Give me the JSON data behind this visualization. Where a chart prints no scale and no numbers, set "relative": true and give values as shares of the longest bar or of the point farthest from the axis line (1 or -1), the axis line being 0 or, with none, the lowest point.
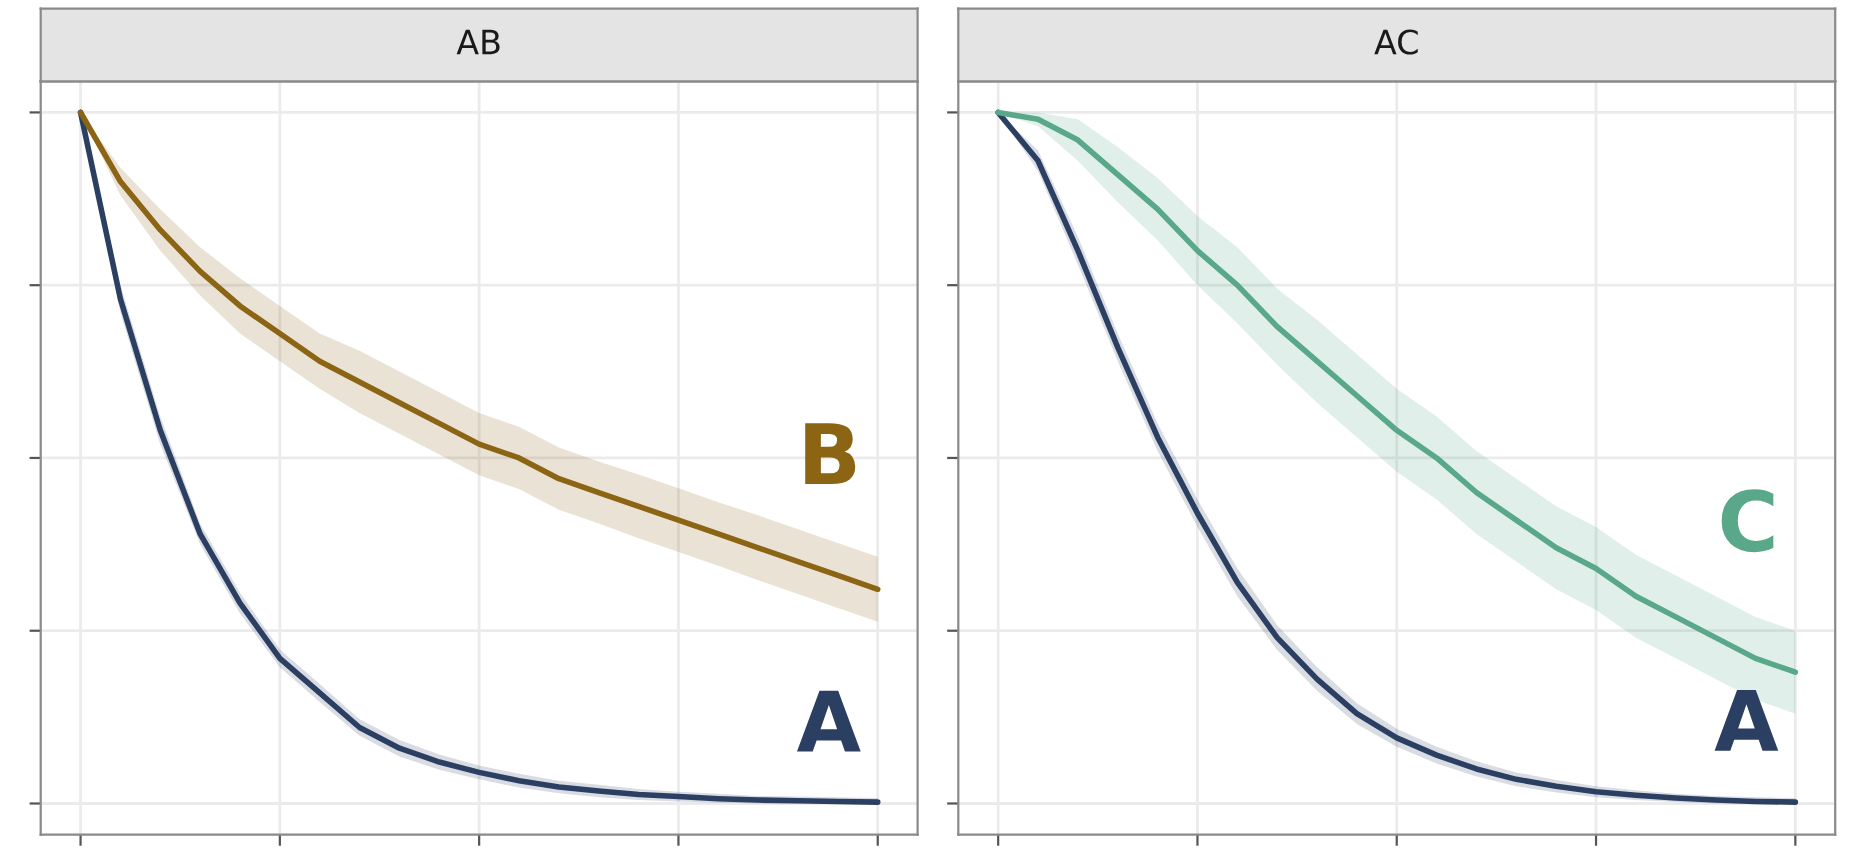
{
  "chart_data": [
    {
      "type": "line",
      "title": "AB",
      "relative": true,
      "grid": true,
      "legend": false,
      "categories": [
        null,
        null,
        null,
        null,
        null,
        null,
        null,
        null,
        null,
        null,
        null,
        null,
        null,
        null,
        null,
        null,
        null,
        null,
        null,
        null,
        null
      ],
      "series": [
        {
          "name": "A",
          "color": "#2b3f63",
          "values": [
            1,
            0.73,
            0.54,
            0.39,
            0.29,
            0.21,
            0.16,
            0.11,
            0.08,
            0.06,
            0.045,
            0.033,
            0.024,
            0.018,
            0.013,
            0.01,
            0.007,
            0.005,
            0.004,
            0.003,
            0.002
          ],
          "lower": [
            1,
            0.71,
            0.52,
            0.375,
            0.275,
            0.197,
            0.147,
            0.098,
            0.068,
            0.049,
            0.035,
            0.023,
            0.015,
            0.009,
            0.005,
            0.003,
            0.001,
            0,
            0,
            0,
            0
          ],
          "upper": [
            1,
            0.75,
            0.56,
            0.405,
            0.305,
            0.223,
            0.173,
            0.122,
            0.092,
            0.071,
            0.055,
            0.043,
            0.033,
            0.027,
            0.021,
            0.017,
            0.014,
            0.011,
            0.01,
            0.009,
            0.008
          ]
        },
        {
          "name": "B",
          "color": "#8b6414",
          "values": [
            1,
            0.9,
            0.83,
            0.77,
            0.72,
            0.68,
            0.64,
            0.61,
            0.58,
            0.55,
            0.52,
            0.5,
            0.47,
            0.45,
            0.43,
            0.41,
            0.39,
            0.37,
            0.35,
            0.33,
            0.31
          ],
          "lower": [
            1,
            0.88,
            0.8,
            0.735,
            0.68,
            0.64,
            0.6,
            0.565,
            0.535,
            0.505,
            0.475,
            0.455,
            0.425,
            0.405,
            0.384,
            0.364,
            0.344,
            0.323,
            0.303,
            0.283,
            0.263
          ],
          "upper": [
            1,
            0.92,
            0.86,
            0.805,
            0.76,
            0.72,
            0.68,
            0.655,
            0.625,
            0.595,
            0.565,
            0.545,
            0.515,
            0.495,
            0.476,
            0.456,
            0.436,
            0.417,
            0.397,
            0.377,
            0.357
          ]
        }
      ]
    },
    {
      "type": "line",
      "title": "AC",
      "relative": true,
      "grid": true,
      "legend": false,
      "categories": [
        null,
        null,
        null,
        null,
        null,
        null,
        null,
        null,
        null,
        null,
        null,
        null,
        null,
        null,
        null,
        null,
        null,
        null,
        null,
        null,
        null
      ],
      "series": [
        {
          "name": "A",
          "color": "#2b3f63",
          "values": [
            1,
            0.93,
            0.8,
            0.66,
            0.53,
            0.42,
            0.32,
            0.24,
            0.18,
            0.13,
            0.095,
            0.07,
            0.05,
            0.035,
            0.025,
            0.017,
            0.012,
            0.008,
            0.005,
            0.003,
            0.002
          ],
          "lower": [
            1,
            0.915,
            0.78,
            0.64,
            0.51,
            0.4,
            0.3,
            0.222,
            0.163,
            0.115,
            0.082,
            0.058,
            0.039,
            0.025,
            0.016,
            0.009,
            0.005,
            0.002,
            0,
            0,
            0
          ],
          "upper": [
            1,
            0.945,
            0.82,
            0.68,
            0.55,
            0.44,
            0.34,
            0.258,
            0.197,
            0.145,
            0.108,
            0.082,
            0.061,
            0.045,
            0.034,
            0.025,
            0.019,
            0.014,
            0.011,
            0.009,
            0.008
          ]
        },
        {
          "name": "C",
          "color": "#5aa88a",
          "values": [
            1,
            0.99,
            0.96,
            0.91,
            0.86,
            0.8,
            0.75,
            0.69,
            0.64,
            0.59,
            0.54,
            0.5,
            0.45,
            0.41,
            0.37,
            0.34,
            0.3,
            0.27,
            0.24,
            0.21,
            0.19
          ],
          "lower": [
            1,
            0.98,
            0.93,
            0.87,
            0.815,
            0.75,
            0.695,
            0.635,
            0.58,
            0.53,
            0.48,
            0.44,
            0.39,
            0.35,
            0.31,
            0.28,
            0.24,
            0.21,
            0.18,
            0.15,
            0.13
          ],
          "upper": [
            1,
            1,
            0.99,
            0.95,
            0.905,
            0.85,
            0.805,
            0.745,
            0.7,
            0.65,
            0.6,
            0.56,
            0.51,
            0.47,
            0.43,
            0.4,
            0.36,
            0.33,
            0.3,
            0.27,
            0.25
          ]
        }
      ]
    }
  ]
}
